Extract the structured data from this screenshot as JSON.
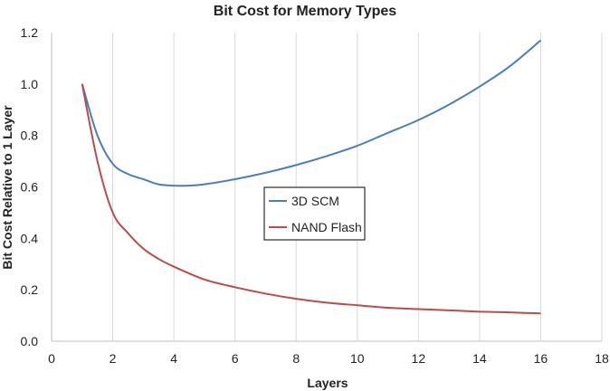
{
  "chart_data": {
    "type": "line",
    "title": "Bit Cost for Memory Types",
    "xlabel": "Layers",
    "ylabel": "Bit Cost Relative to 1 Layer",
    "xlim": [
      0,
      18
    ],
    "ylim": [
      0,
      1.2
    ],
    "xticks": [
      0,
      2,
      4,
      6,
      8,
      10,
      12,
      14,
      16,
      18
    ],
    "yticks": [
      "0.0",
      "0.2",
      "0.4",
      "0.6",
      "0.8",
      "1.0",
      "1.2"
    ],
    "grid": "vertical",
    "legend_position": "center",
    "series": [
      {
        "name": "3D SCM",
        "color": "#4a7ebb",
        "x": [
          1,
          1.5,
          2,
          2.5,
          3,
          3.5,
          4,
          4.5,
          5,
          6,
          7,
          8,
          9,
          10,
          11,
          12,
          13,
          14,
          15,
          16
        ],
        "y": [
          1.0,
          0.8,
          0.69,
          0.65,
          0.63,
          0.61,
          0.605,
          0.605,
          0.61,
          0.63,
          0.655,
          0.685,
          0.72,
          0.76,
          0.81,
          0.86,
          0.92,
          0.99,
          1.07,
          1.17
        ]
      },
      {
        "name": "NAND Flash",
        "color": "#be4b48",
        "x": [
          1,
          1.5,
          2,
          2.5,
          3,
          3.5,
          4,
          5,
          6,
          7,
          8,
          9,
          10,
          11,
          12,
          13,
          14,
          15,
          16
        ],
        "y": [
          1.0,
          0.7,
          0.5,
          0.42,
          0.36,
          0.32,
          0.29,
          0.24,
          0.21,
          0.185,
          0.165,
          0.15,
          0.14,
          0.13,
          0.125,
          0.12,
          0.115,
          0.112,
          0.108
        ]
      }
    ]
  }
}
